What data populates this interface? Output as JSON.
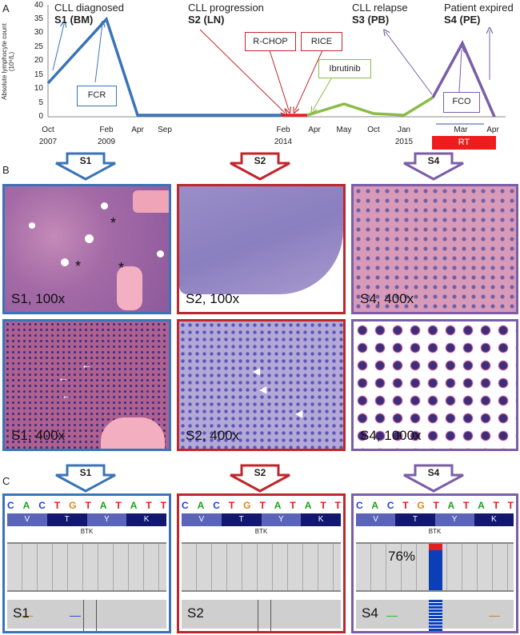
{
  "panel_letters": {
    "a": "A",
    "b": "B",
    "c": "C"
  },
  "timeline": {
    "y_axis_label": "Absolute lymphocyte count (10⁹/L)",
    "y_ticks": [
      "0",
      "5",
      "10",
      "15",
      "20",
      "25",
      "30",
      "35",
      "40"
    ],
    "x_ticks": [
      {
        "top": "Oct",
        "bottom": "2007"
      },
      {
        "top": "Feb",
        "bottom": "2009"
      },
      {
        "top": "Apr",
        "bottom": ""
      },
      {
        "top": "Sep",
        "bottom": ""
      },
      {
        "top": "Feb",
        "bottom": "2014"
      },
      {
        "top": "Apr",
        "bottom": ""
      },
      {
        "top": "May",
        "bottom": ""
      },
      {
        "top": "Oct",
        "bottom": ""
      },
      {
        "top": "Jan",
        "bottom": "2015"
      },
      {
        "top": "Mar",
        "bottom": ""
      },
      {
        "top": "Apr",
        "bottom": ""
      }
    ],
    "events": {
      "s1_title": "CLL diagnosed",
      "s1_sub": "S1 (BM)",
      "s2_title": "CLL progression",
      "s2_sub": "S2 (LN)",
      "s3_title": "CLL relapse",
      "s3_sub": "S3 (PB)",
      "s4_title": "Patient expired",
      "s4_sub": "S4 (PE)"
    },
    "treatments": {
      "fcr": "FCR",
      "rchop": "R-CHOP",
      "rice": "RICE",
      "ibrutinib": "Ibrutinib",
      "fco": "FCO",
      "rt": "RT"
    },
    "colors": {
      "blue": "#3a74b6",
      "red": "#c0272d",
      "green": "#8cbc48",
      "purple": "#7b5ea7",
      "rt": "#ee1c1c"
    }
  },
  "arrows": {
    "s1": "S1",
    "s2": "S2",
    "s4": "S4"
  },
  "histology": [
    {
      "caption": "S1, 100x",
      "color": "#3a74b6"
    },
    {
      "caption": "S2, 100x",
      "color": "#c0272d"
    },
    {
      "caption": "S4, 400x",
      "color": "#7b5ea7"
    },
    {
      "caption": "S1, 400x",
      "color": "#3a74b6"
    },
    {
      "caption": "S2, 400x",
      "color": "#c0272d"
    },
    {
      "caption": "S4, 1000x",
      "color": "#7b5ea7"
    }
  ],
  "igv": {
    "sequence": [
      "C",
      "A",
      "C",
      "T",
      "G",
      "T",
      "A",
      "T",
      "A",
      "T",
      "T"
    ],
    "amino_acids": [
      "V",
      "T",
      "Y",
      "K"
    ],
    "gene": "BTK",
    "panels": [
      {
        "caption": "S1",
        "color": "#3a74b6"
      },
      {
        "caption": "S2",
        "color": "#c0272d"
      },
      {
        "caption": "S4",
        "color": "#7b5ea7",
        "vaf": "76%"
      }
    ]
  }
}
